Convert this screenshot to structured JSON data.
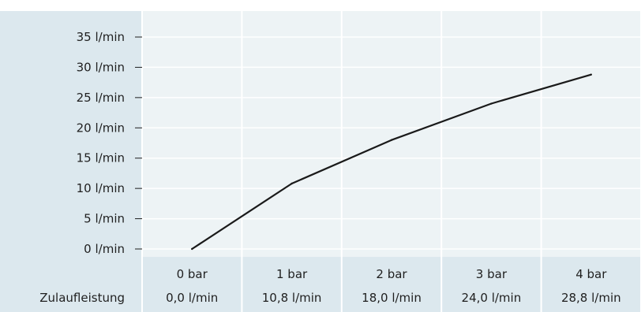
{
  "chart_data": {
    "type": "line",
    "title": "",
    "xlabel": "",
    "ylabel": "",
    "row_header": "Zulaufleistung",
    "categories": [
      "0 bar",
      "1 bar",
      "2 bar",
      "3 bar",
      "4 bar"
    ],
    "sublabels": [
      "0,0 l/min",
      "10,8 l/min",
      "18,0 l/min",
      "24,0 l/min",
      "28,8 l/min"
    ],
    "values": [
      0.0,
      10.8,
      18.0,
      24.0,
      28.8
    ],
    "ylim": [
      0,
      35
    ],
    "yticks": [
      0,
      5,
      10,
      15,
      20,
      25,
      30,
      35
    ],
    "ytick_labels": [
      "0 l/min",
      "5 l/min",
      "10 l/min",
      "15 l/min",
      "20 l/min",
      "25 l/min",
      "30 l/min",
      "35 l/min"
    ],
    "grid": true,
    "colors": {
      "label_background": "#dce8ee",
      "plot_background": "#edf3f5",
      "gridline": "#ffffff",
      "line": "#1a1a1a",
      "text": "#1f1f1f"
    }
  }
}
